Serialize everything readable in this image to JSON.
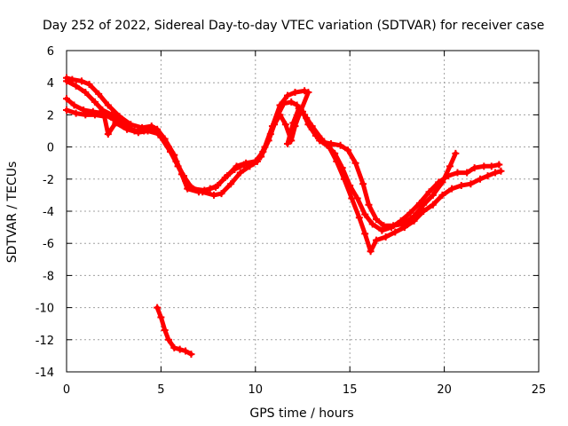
{
  "chart_data": {
    "type": "scatter",
    "title": "Day 252 of 2022, Sidereal Day-to-day VTEC variation (SDTVAR) for receiver case",
    "xlabel": "GPS time / hours",
    "ylabel": "SDTVAR / TECUs",
    "xlim": [
      0,
      25
    ],
    "ylim": [
      -14,
      6
    ],
    "xticks": [
      0,
      5,
      10,
      15,
      20,
      25
    ],
    "yticks": [
      -14,
      -12,
      -10,
      -8,
      -6,
      -4,
      -2,
      0,
      2,
      4,
      6
    ],
    "grid": true,
    "marker": "+",
    "color": "#ff0000",
    "series": [
      {
        "name": "trace-a",
        "points": [
          [
            0,
            4.3
          ],
          [
            0.3,
            4.2
          ],
          [
            0.8,
            4.1
          ],
          [
            1.2,
            3.9
          ],
          [
            1.7,
            3.3
          ],
          [
            2.2,
            2.6
          ],
          [
            2.8,
            1.9
          ],
          [
            3.4,
            1.4
          ],
          [
            4,
            1.2
          ],
          [
            4.5,
            1.3
          ],
          [
            4.8,
            1.1
          ],
          [
            5.2,
            0.5
          ],
          [
            5.7,
            -0.5
          ],
          [
            6.1,
            -1.7
          ],
          [
            6.4,
            -2.6
          ],
          [
            7,
            -2.8
          ],
          [
            7.6,
            -2.6
          ],
          [
            8,
            -2.4
          ],
          [
            8.5,
            -1.8
          ],
          [
            9,
            -1.2
          ],
          [
            9.5,
            -1
          ],
          [
            10,
            -0.9
          ],
          [
            10.4,
            -0.3
          ],
          [
            10.8,
            0.8
          ],
          [
            11.2,
            2
          ],
          [
            11.5,
            2.7
          ],
          [
            11.9,
            2.8
          ],
          [
            12.2,
            2.6
          ],
          [
            12.5,
            2.2
          ],
          [
            12.8,
            1.4
          ],
          [
            13.2,
            0.7
          ],
          [
            13.6,
            0.3
          ],
          [
            14,
            0.2
          ],
          [
            14.5,
            0.1
          ],
          [
            14.9,
            -0.2
          ],
          [
            15.3,
            -1
          ],
          [
            15.7,
            -2.3
          ],
          [
            16,
            -3.6
          ],
          [
            16.4,
            -4.5
          ],
          [
            16.8,
            -4.9
          ],
          [
            17.3,
            -4.9
          ],
          [
            17.8,
            -4.8
          ],
          [
            18.4,
            -4.3
          ],
          [
            18.9,
            -3.6
          ],
          [
            19.4,
            -3
          ],
          [
            19.9,
            -2.2
          ],
          [
            20.3,
            -1.2
          ],
          [
            20.6,
            -0.4
          ]
        ]
      },
      {
        "name": "trace-b",
        "points": [
          [
            0,
            3
          ],
          [
            0.4,
            2.6
          ],
          [
            0.9,
            2.3
          ],
          [
            1.4,
            2.2
          ],
          [
            1.9,
            2.1
          ],
          [
            2.5,
            1.7
          ],
          [
            3,
            1.3
          ],
          [
            3.6,
            1
          ],
          [
            4.1,
            1
          ],
          [
            4.6,
            1.1
          ],
          [
            5,
            0.6
          ],
          [
            5.5,
            -0.3
          ],
          [
            5.9,
            -1.2
          ],
          [
            6.3,
            -2.1
          ],
          [
            6.7,
            -2.6
          ],
          [
            7.3,
            -2.7
          ],
          [
            7.9,
            -2.5
          ],
          [
            8.4,
            -1.9
          ],
          [
            8.9,
            -1.4
          ],
          [
            9.4,
            -1.1
          ],
          [
            9.9,
            -1
          ],
          [
            10.3,
            -0.6
          ],
          [
            10.7,
            0.4
          ],
          [
            11,
            1.4
          ],
          [
            11.3,
            2
          ],
          [
            11.6,
            1.4
          ],
          [
            11.9,
            0.4
          ],
          [
            12.1,
            1.3
          ],
          [
            12.4,
            2.3
          ],
          [
            12.7,
            1.8
          ],
          [
            13,
            1.1
          ],
          [
            13.4,
            0.4
          ],
          [
            13.8,
            0.1
          ],
          [
            14.2,
            -0.4
          ],
          [
            14.6,
            -1.3
          ],
          [
            15,
            -2.4
          ],
          [
            15.4,
            -3.2
          ],
          [
            15.8,
            -4.2
          ],
          [
            16.2,
            -4.8
          ],
          [
            16.7,
            -5.2
          ],
          [
            17.2,
            -5
          ],
          [
            17.7,
            -4.6
          ],
          [
            18.2,
            -4.1
          ],
          [
            18.7,
            -3.5
          ],
          [
            19.2,
            -2.8
          ],
          [
            19.7,
            -2.2
          ],
          [
            20.2,
            -1.8
          ],
          [
            20.7,
            -1.6
          ],
          [
            21.2,
            -1.6
          ],
          [
            21.6,
            -1.3
          ],
          [
            22.1,
            -1.2
          ],
          [
            22.5,
            -1.2
          ],
          [
            22.9,
            -1.1
          ]
        ]
      },
      {
        "name": "trace-c",
        "points": [
          [
            0,
            2.3
          ],
          [
            0.5,
            2.1
          ],
          [
            1,
            2
          ],
          [
            1.5,
            2
          ],
          [
            2,
            1.9
          ],
          [
            2.2,
            0.8
          ],
          [
            2.6,
            1.5
          ],
          [
            3.2,
            1.1
          ],
          [
            3.8,
            0.9
          ],
          [
            4.3,
            1
          ],
          [
            4.9,
            0.8
          ],
          [
            5.4,
            0
          ],
          [
            5.8,
            -0.9
          ],
          [
            6.2,
            -1.8
          ],
          [
            6.6,
            -2.5
          ],
          [
            7.2,
            -2.8
          ],
          [
            7.8,
            -3
          ],
          [
            8.2,
            -2.9
          ],
          [
            8.7,
            -2.3
          ],
          [
            9.2,
            -1.6
          ],
          [
            9.7,
            -1.2
          ],
          [
            10.1,
            -0.9
          ],
          [
            10.5,
            0
          ],
          [
            10.9,
            1.3
          ],
          [
            11.3,
            2.6
          ],
          [
            11.7,
            3.2
          ],
          [
            12.1,
            3.4
          ],
          [
            12.6,
            3.5
          ],
          [
            12.8,
            3.4
          ],
          [
            11.7,
            0.2
          ],
          [
            12,
            1.5
          ],
          [
            12.3,
            2.4
          ],
          [
            12.6,
            2
          ],
          [
            13,
            1.3
          ],
          [
            13.5,
            0.5
          ],
          [
            13.9,
            0
          ],
          [
            14.3,
            -0.9
          ],
          [
            14.7,
            -2
          ],
          [
            15.1,
            -3.2
          ],
          [
            15.5,
            -4.4
          ],
          [
            15.8,
            -5.4
          ],
          [
            16.1,
            -6.5
          ],
          [
            16.4,
            -5.8
          ],
          [
            16.9,
            -5.6
          ],
          [
            17.4,
            -5.3
          ],
          [
            17.9,
            -5
          ],
          [
            18.4,
            -4.6
          ],
          [
            18.9,
            -4
          ],
          [
            19.4,
            -3.6
          ],
          [
            19.9,
            -3
          ],
          [
            20.4,
            -2.6
          ],
          [
            20.9,
            -2.4
          ],
          [
            21.4,
            -2.3
          ],
          [
            21.9,
            -2
          ],
          [
            22.3,
            -1.8
          ],
          [
            22.7,
            -1.6
          ],
          [
            23,
            -1.5
          ]
        ]
      },
      {
        "name": "trace-d",
        "points": [
          [
            0,
            4.1
          ],
          [
            0.5,
            3.8
          ],
          [
            1,
            3.4
          ],
          [
            1.5,
            2.8
          ],
          [
            1.9,
            2.3
          ],
          [
            2.4,
            2
          ],
          [
            2.9,
            1.6
          ],
          [
            3.3,
            1.2
          ],
          [
            3.6,
            1
          ]
        ]
      },
      {
        "name": "trace-e",
        "points": [
          [
            4.8,
            -10
          ],
          [
            5,
            -10.6
          ],
          [
            5.2,
            -11.4
          ],
          [
            5.4,
            -12
          ],
          [
            5.7,
            -12.5
          ],
          [
            6,
            -12.6
          ],
          [
            6.3,
            -12.7
          ],
          [
            6.6,
            -12.9
          ]
        ]
      }
    ]
  }
}
